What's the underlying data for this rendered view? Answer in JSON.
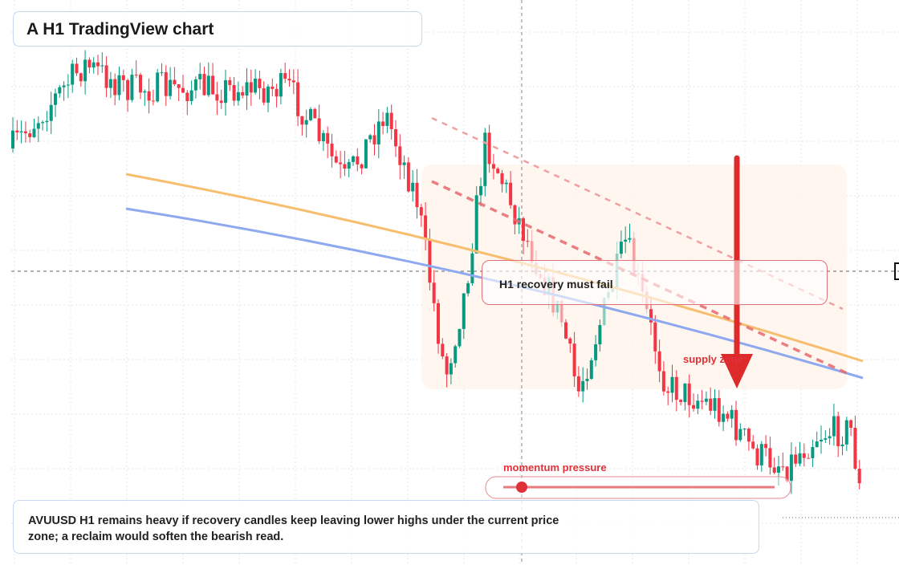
{
  "header": {
    "title": "A H1 TradingView chart"
  },
  "annotations": {
    "callout": "H1 recovery must fail",
    "zone": "supply zone",
    "pressure": "momentum pressure"
  },
  "footer": {
    "note": "AVUUSD H1 remains heavy if recovery candles keep leaving lower highs under the current price zone; a reclaim would soften the bearish read."
  }
}
